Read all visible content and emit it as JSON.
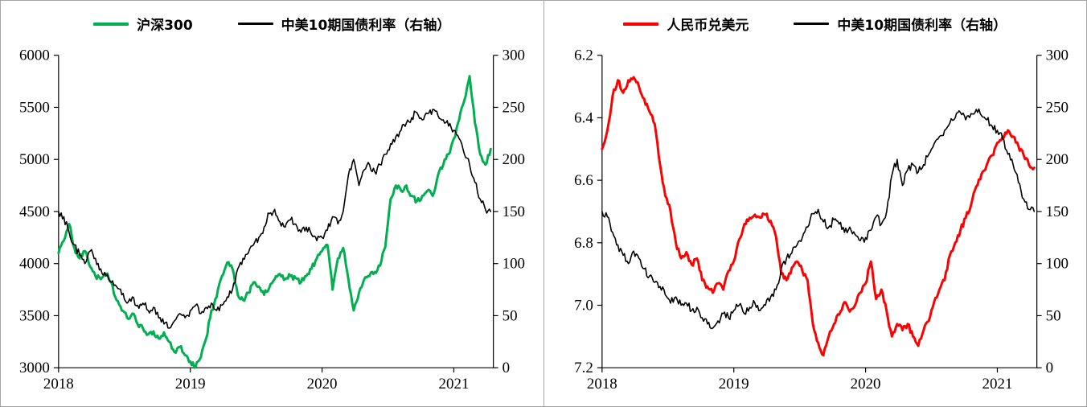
{
  "figure": {
    "background": "#ffffff",
    "border_color": "#a6a6a6"
  },
  "chart_data": [
    {
      "type": "line",
      "title": "",
      "xlabel": "",
      "ylabel": "",
      "legend_position": "top-center",
      "grid": false,
      "legend": [
        {
          "label": "沪深300",
          "color": "#00B050",
          "width": 3
        },
        {
          "label": "中美10期国债利率（右轴）",
          "color": "#000000",
          "width": 1.6
        }
      ],
      "x_axis": {
        "min": 2018,
        "max": 2021.3,
        "ticks": [
          2018,
          2019,
          2020,
          2021
        ],
        "tick_labels": [
          "2018",
          "2019",
          "2020",
          "2021"
        ]
      },
      "left_axis": {
        "min": 3000,
        "max": 6000,
        "inverted": false,
        "ticks": [
          3000,
          3500,
          4000,
          4500,
          5000,
          5500,
          6000
        ],
        "tick_labels": [
          "3000",
          "3500",
          "4000",
          "4500",
          "5000",
          "5500",
          "6000"
        ]
      },
      "right_axis": {
        "min": 0,
        "max": 300,
        "inverted": false,
        "ticks": [
          0,
          50,
          100,
          150,
          200,
          250,
          300
        ],
        "tick_labels": [
          "0",
          "50",
          "100",
          "150",
          "200",
          "250",
          "300"
        ]
      },
      "series": [
        {
          "name": "沪深300",
          "axis": "left",
          "color": "#00B050",
          "width": 3,
          "x_start": 2018.0,
          "x_step": 0.04,
          "values": [
            4100,
            4220,
            4380,
            4150,
            4050,
            4120,
            3970,
            3880,
            3850,
            3900,
            3820,
            3650,
            3550,
            3480,
            3520,
            3420,
            3380,
            3320,
            3350,
            3280,
            3340,
            3250,
            3150,
            3200,
            3120,
            3060,
            3010,
            3100,
            3280,
            3550,
            3680,
            3880,
            4010,
            3950,
            3700,
            3650,
            3720,
            3820,
            3780,
            3700,
            3770,
            3850,
            3900,
            3850,
            3880,
            3860,
            3820,
            3880,
            3950,
            4050,
            4120,
            4180,
            3750,
            4050,
            4150,
            3850,
            3550,
            3720,
            3850,
            3880,
            3920,
            3980,
            4160,
            4620,
            4750,
            4700,
            4750,
            4650,
            4600,
            4650,
            4700,
            4650,
            4850,
            4950,
            5050,
            5200,
            5380,
            5570,
            5800,
            5350,
            5050,
            4950,
            5100
          ]
        },
        {
          "name": "中美10期国债利率（右轴）",
          "axis": "right",
          "color": "#000000",
          "width": 1.6,
          "x_start": 2018.0,
          "x_step": 0.04,
          "values": [
            150,
            145,
            130,
            118,
            108,
            100,
            112,
            105,
            95,
            88,
            82,
            78,
            70,
            62,
            68,
            60,
            62,
            55,
            58,
            48,
            42,
            38,
            45,
            52,
            48,
            55,
            60,
            52,
            58,
            62,
            55,
            60,
            68,
            75,
            95,
            105,
            110,
            118,
            125,
            135,
            148,
            152,
            140,
            135,
            142,
            138,
            130,
            135,
            128,
            122,
            125,
            132,
            145,
            138,
            150,
            185,
            200,
            175,
            190,
            195,
            188,
            195,
            205,
            215,
            222,
            228,
            235,
            240,
            245,
            238,
            244,
            248,
            242,
            238,
            232,
            228,
            220,
            205,
            195,
            178,
            162,
            152,
            150
          ]
        }
      ]
    },
    {
      "type": "line",
      "title": "",
      "xlabel": "",
      "ylabel": "",
      "legend_position": "top-center",
      "grid": false,
      "legend": [
        {
          "label": "人民币兑美元",
          "color": "#FF0000",
          "width": 3
        },
        {
          "label": "中美10期国债利率（右轴）",
          "color": "#000000",
          "width": 1.6
        }
      ],
      "x_axis": {
        "min": 2018,
        "max": 2021.3,
        "ticks": [
          2018,
          2019,
          2020,
          2021
        ],
        "tick_labels": [
          "2018",
          "2019",
          "2020",
          "2021"
        ]
      },
      "left_axis": {
        "min": 6.2,
        "max": 7.2,
        "inverted": true,
        "ticks": [
          6.2,
          6.4,
          6.6,
          6.8,
          7.0,
          7.2
        ],
        "tick_labels": [
          "6.2",
          "6.4",
          "6.6",
          "6.8",
          "7.0",
          "7.2"
        ]
      },
      "right_axis": {
        "min": 0,
        "max": 300,
        "inverted": false,
        "ticks": [
          0,
          50,
          100,
          150,
          200,
          250,
          300
        ],
        "tick_labels": [
          "0",
          "50",
          "100",
          "150",
          "200",
          "250",
          "300"
        ]
      },
      "series": [
        {
          "name": "人民币兑美元",
          "axis": "left",
          "color": "#FF0000",
          "width": 3,
          "x_start": 2018.0,
          "x_step": 0.04,
          "values": [
            6.5,
            6.44,
            6.33,
            6.28,
            6.32,
            6.28,
            6.27,
            6.3,
            6.34,
            6.38,
            6.42,
            6.55,
            6.65,
            6.7,
            6.8,
            6.85,
            6.83,
            6.87,
            6.85,
            6.92,
            6.94,
            6.96,
            6.93,
            6.95,
            6.89,
            6.86,
            6.79,
            6.74,
            6.72,
            6.71,
            6.72,
            6.71,
            6.73,
            6.78,
            6.9,
            6.92,
            6.88,
            6.86,
            6.89,
            6.92,
            7.06,
            7.12,
            7.16,
            7.1,
            7.06,
            7.03,
            6.99,
            7.02,
            7.0,
            6.96,
            6.93,
            6.86,
            6.98,
            6.95,
            7.02,
            7.1,
            7.06,
            7.08,
            7.06,
            7.1,
            7.13,
            7.08,
            7.05,
            6.99,
            6.95,
            6.92,
            6.84,
            6.8,
            6.76,
            6.72,
            6.68,
            6.62,
            6.58,
            6.55,
            6.52,
            6.48,
            6.46,
            6.44,
            6.46,
            6.49,
            6.52,
            6.55,
            6.56
          ]
        },
        {
          "name": "中美10期国债利率（右轴）",
          "axis": "right",
          "color": "#000000",
          "width": 1.6,
          "x_start": 2018.0,
          "x_step": 0.04,
          "values": [
            150,
            145,
            130,
            118,
            108,
            100,
            112,
            105,
            95,
            88,
            82,
            78,
            70,
            62,
            68,
            60,
            62,
            55,
            58,
            48,
            42,
            38,
            45,
            52,
            48,
            55,
            60,
            52,
            58,
            62,
            55,
            60,
            68,
            75,
            95,
            105,
            110,
            118,
            125,
            135,
            148,
            152,
            140,
            135,
            142,
            138,
            130,
            135,
            128,
            122,
            125,
            132,
            145,
            138,
            150,
            185,
            200,
            175,
            190,
            195,
            188,
            195,
            205,
            215,
            222,
            228,
            235,
            240,
            245,
            238,
            244,
            248,
            242,
            238,
            232,
            228,
            220,
            205,
            195,
            178,
            162,
            152,
            150
          ]
        }
      ]
    }
  ]
}
